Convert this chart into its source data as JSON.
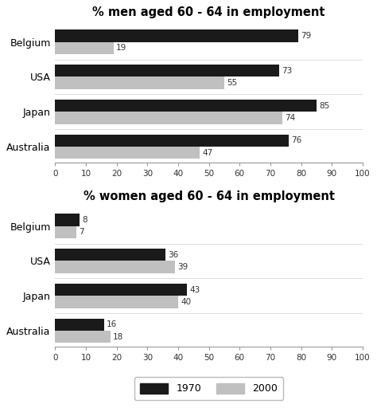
{
  "men": {
    "title": "% men aged 60 - 64 in employment",
    "countries": [
      "Belgium",
      "USA",
      "Japan",
      "Australia"
    ],
    "values_1970": [
      79,
      73,
      85,
      76
    ],
    "values_2000": [
      19,
      55,
      74,
      47
    ]
  },
  "women": {
    "title": "% women aged 60 - 64 in employment",
    "countries": [
      "Belgium",
      "USA",
      "Japan",
      "Australia"
    ],
    "values_1970": [
      8,
      36,
      43,
      16
    ],
    "values_2000": [
      7,
      39,
      40,
      18
    ]
  },
  "color_1970": "#1a1a1a",
  "color_2000": "#c0c0c0",
  "xlim": [
    0,
    100
  ],
  "xticks": [
    0,
    10,
    20,
    30,
    40,
    50,
    60,
    70,
    80,
    90,
    100
  ],
  "bar_height": 0.35,
  "label_fontsize": 7.5,
  "title_fontsize": 10.5,
  "tick_fontsize": 7.5,
  "country_fontsize": 9,
  "legend_labels": [
    "1970",
    "2000"
  ],
  "bg_color": "#ffffff"
}
